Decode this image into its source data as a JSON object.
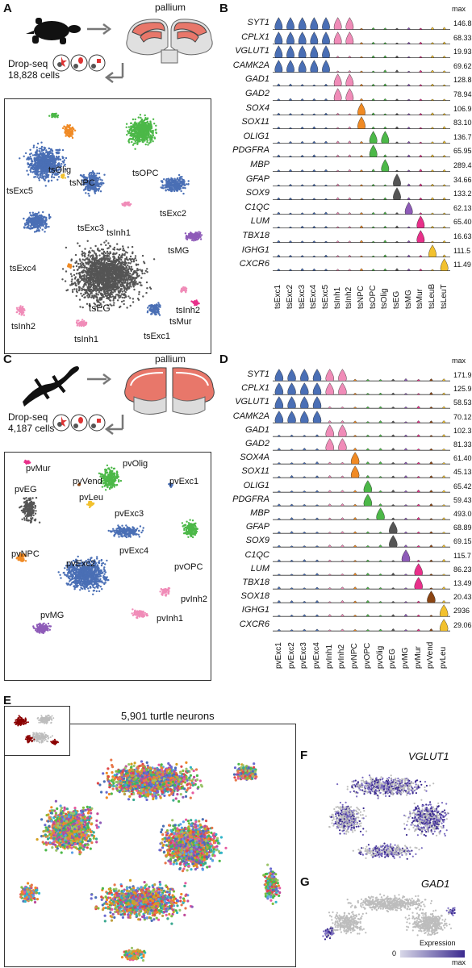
{
  "colors": {
    "exc": "#4a6fb5",
    "inh": "#f08cb8",
    "npc": "#f08a24",
    "opc": "#4cb848",
    "olig": "#4cb848",
    "eg": "#555555",
    "mg": "#8e5bb8",
    "mur": "#e8308a",
    "vend": "#8b4513",
    "leu": "#f2c12e",
    "gray": "#bdbdbd",
    "dark_red": "#8b0000",
    "expr_low": "#d8d8e8",
    "expr_high": "#3b2a8f"
  },
  "panelA": {
    "letter": "A",
    "pallium": "pallium",
    "dropseq": "Drop-seq",
    "cells": "18,828 cells",
    "clusters": [
      "tsOlig",
      "tsNPC",
      "tsOPC",
      "tsExc5",
      "tsExc2",
      "tsExc3",
      "tsInh1",
      "tsMG",
      "tsExc4",
      "tsEG",
      "tsInh2",
      "tsMur",
      "tsInh2",
      "tsExc1",
      "tsInh1"
    ]
  },
  "panelB": {
    "letter": "B",
    "max_label": "max",
    "genes": [
      "SYT1",
      "CPLX1",
      "VGLUT1",
      "CAMK2A",
      "GAD1",
      "GAD2",
      "SOX4",
      "SOX11",
      "OLIG1",
      "PDGFRA",
      "MBP",
      "GFAP",
      "SOX9",
      "C1QC",
      "LUM",
      "TBX18",
      "IGHG1",
      "CXCR6"
    ],
    "max_values": [
      "146.8",
      "68.33",
      "19.93",
      "69.62",
      "128.8",
      "78.94",
      "106.9",
      "83.10",
      "136.7",
      "65.95",
      "289.4",
      "34.66",
      "133.2",
      "62.13",
      "65.40",
      "16.63",
      "111.5",
      "11.49"
    ],
    "clusters": [
      "tsExc1",
      "tsExc2",
      "tsExc3",
      "tsExc4",
      "tsExc5",
      "tsInh1",
      "tsInh2",
      "tsNPC",
      "tsOPC",
      "tsOlig",
      "tsEG",
      "tsMG",
      "tsMur",
      "tsLeuB",
      "tsLeuT"
    ]
  },
  "panelC": {
    "letter": "C",
    "pallium": "pallium",
    "dropseq": "Drop-seq",
    "cells": "4,187 cells",
    "clusters": [
      "pvMur",
      "pvOlig",
      "pvVend",
      "pvEG",
      "pvExc1",
      "pvLeu",
      "pvExc3",
      "pvExc4",
      "pvNPC",
      "pvExc2",
      "pvOPC",
      "pvInh2",
      "pvMG",
      "pvInh1"
    ]
  },
  "panelD": {
    "letter": "D",
    "max_label": "max",
    "genes": [
      "SYT1",
      "CPLX1",
      "VGLUT1",
      "CAMK2A",
      "GAD1",
      "GAD2",
      "SOX4A",
      "SOX11",
      "OLIG1",
      "PDGFRA",
      "MBP",
      "GFAP",
      "SOX9",
      "C1QC",
      "LUM",
      "TBX18",
      "SOX18",
      "IGHG1",
      "CXCR6"
    ],
    "max_values": [
      "171.9",
      "125.9",
      "58.53",
      "70.12",
      "102.3",
      "81.33",
      "61.40",
      "45.13",
      "65.42",
      "59.43",
      "493.0",
      "68.89",
      "69.15",
      "115.7",
      "86.23",
      "13.49",
      "20.43",
      "2936",
      "29.06"
    ],
    "clusters": [
      "pvExc1",
      "pvExc2",
      "pvExc3",
      "pvExc4",
      "pvInh1",
      "pvInh2",
      "pvNPC",
      "pvOPC",
      "pvOlig",
      "pvEG",
      "pvMG",
      "pvMur",
      "pvVend",
      "pvLeu"
    ]
  },
  "panelE": {
    "letter": "E",
    "title": "5,901 turtle neurons"
  },
  "panelF": {
    "letter": "F",
    "gene": "VGLUT1"
  },
  "panelG": {
    "letter": "G",
    "gene": "GAD1",
    "legend_title": "Expression",
    "legend_min": "0",
    "legend_max": "max"
  }
}
